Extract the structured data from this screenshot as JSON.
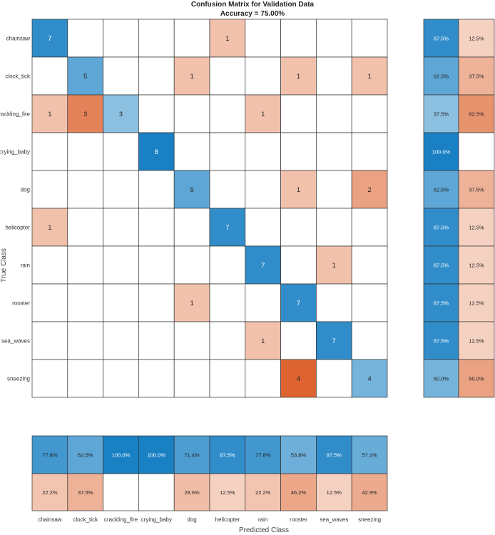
{
  "chart_data": {
    "type": "heatmap",
    "title": "Confusion Matrix for Validation Data",
    "subtitle": "Accuracy = 75.00%",
    "xlabel": "Predicted Class",
    "ylabel": "True Class",
    "row_labels": [
      "chainsaw",
      "clock_tick",
      "crackling_fire",
      "crying_baby",
      "dog",
      "helicopter",
      "rain",
      "rooster",
      "sea_waves",
      "sneezing"
    ],
    "col_labels": [
      "chainsaw",
      "clock_tick",
      "crackling_fire",
      "crying_baby",
      "dog",
      "helicopter",
      "rain",
      "rooster",
      "sea_waves",
      "sneezing"
    ],
    "matrix": [
      [
        7,
        0,
        0,
        0,
        0,
        1,
        0,
        0,
        0,
        0
      ],
      [
        0,
        5,
        0,
        0,
        1,
        0,
        0,
        1,
        0,
        1
      ],
      [
        1,
        3,
        3,
        0,
        0,
        0,
        1,
        0,
        0,
        0
      ],
      [
        0,
        0,
        0,
        8,
        0,
        0,
        0,
        0,
        0,
        0
      ],
      [
        0,
        0,
        0,
        0,
        5,
        0,
        0,
        1,
        0,
        2
      ],
      [
        1,
        0,
        0,
        0,
        0,
        7,
        0,
        0,
        0,
        0
      ],
      [
        0,
        0,
        0,
        0,
        0,
        0,
        7,
        0,
        1,
        0
      ],
      [
        0,
        0,
        0,
        0,
        1,
        0,
        0,
        7,
        0,
        0
      ],
      [
        0,
        0,
        0,
        0,
        0,
        0,
        1,
        0,
        7,
        0
      ],
      [
        0,
        0,
        0,
        0,
        0,
        0,
        0,
        4,
        0,
        4
      ]
    ],
    "row_summary": [
      [
        "87.5%",
        "12.5%"
      ],
      [
        "62.5%",
        "37.5%"
      ],
      [
        "37.5%",
        "62.5%"
      ],
      [
        "100.0%",
        ""
      ],
      [
        "62.5%",
        "37.5%"
      ],
      [
        "87.5%",
        "12.5%"
      ],
      [
        "87.5%",
        "12.5%"
      ],
      [
        "87.5%",
        "12.5%"
      ],
      [
        "87.5%",
        "12.5%"
      ],
      [
        "50.0%",
        "50.0%"
      ]
    ],
    "col_summary_correct": [
      "77.8%",
      "62.5%",
      "100.0%",
      "100.0%",
      "71.4%",
      "87.5%",
      "77.8%",
      "53.8%",
      "87.5%",
      "57.1%"
    ],
    "col_summary_incorrect": [
      "22.2%",
      "37.5%",
      "",
      "",
      "28.6%",
      "12.5%",
      "22.2%",
      "46.2%",
      "12.5%",
      "42.9%"
    ],
    "colors": {
      "correct": "#0072bd",
      "incorrect": "#d95319",
      "grid": "#333333",
      "text_dark": "#222222",
      "text_light": "#ffffff"
    }
  }
}
